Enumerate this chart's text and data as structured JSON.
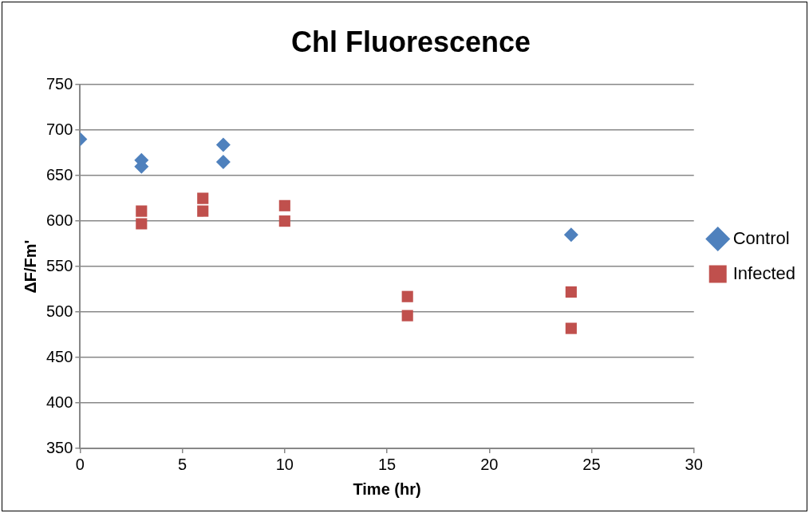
{
  "chart_data": {
    "type": "scatter",
    "title": "Chl Fluorescence",
    "xlabel": "Time (hr)",
    "ylabel": "ΔF/Fm'",
    "xlim": [
      0,
      30
    ],
    "xticks": [
      0,
      5,
      10,
      15,
      20,
      25,
      30
    ],
    "ylim": [
      350,
      750
    ],
    "yticks": [
      350,
      400,
      450,
      500,
      550,
      600,
      650,
      700,
      750
    ],
    "grid": "y",
    "legend": "right",
    "series": [
      {
        "name": "Control",
        "color": "#4f81bd",
        "marker": "diamond",
        "x": [
          0,
          3,
          3,
          7,
          7,
          24
        ],
        "values": [
          690,
          667,
          660,
          684,
          665,
          585
        ]
      },
      {
        "name": "Infected",
        "color": "#c0504d",
        "marker": "square",
        "x": [
          3,
          3,
          6,
          6,
          10,
          10,
          16,
          16,
          24,
          24
        ],
        "values": [
          611,
          597,
          625,
          611,
          617,
          600,
          517,
          496,
          522,
          482
        ]
      }
    ]
  }
}
